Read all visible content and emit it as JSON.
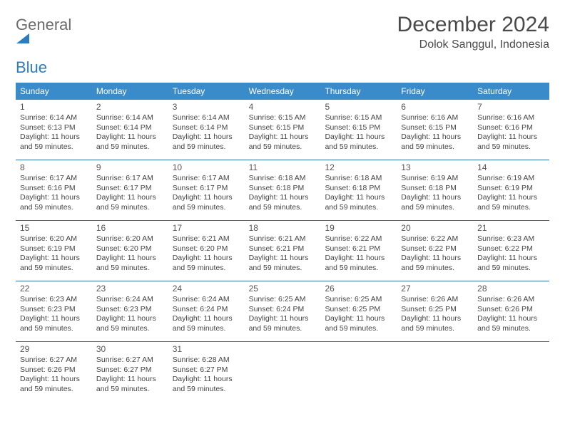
{
  "brand": {
    "text_general": "General",
    "text_blue": "Blue",
    "icon_color": "#2b7cc0"
  },
  "title": "December 2024",
  "location": "Dolok Sanggul, Indonesia",
  "colors": {
    "header_bg": "#3a8bc9",
    "header_text": "#ffffff",
    "row_border": "#2f6fa3",
    "body_text": "#444444",
    "daynum_text": "#555555",
    "title_text": "#4a4a4a",
    "logo_gray": "#6b6b6b",
    "page_bg": "#ffffff"
  },
  "day_headers": [
    "Sunday",
    "Monday",
    "Tuesday",
    "Wednesday",
    "Thursday",
    "Friday",
    "Saturday"
  ],
  "weeks": [
    [
      {
        "day": "1",
        "sunrise": "Sunrise: 6:14 AM",
        "sunset": "Sunset: 6:13 PM",
        "daylight": "Daylight: 11 hours and 59 minutes."
      },
      {
        "day": "2",
        "sunrise": "Sunrise: 6:14 AM",
        "sunset": "Sunset: 6:14 PM",
        "daylight": "Daylight: 11 hours and 59 minutes."
      },
      {
        "day": "3",
        "sunrise": "Sunrise: 6:14 AM",
        "sunset": "Sunset: 6:14 PM",
        "daylight": "Daylight: 11 hours and 59 minutes."
      },
      {
        "day": "4",
        "sunrise": "Sunrise: 6:15 AM",
        "sunset": "Sunset: 6:15 PM",
        "daylight": "Daylight: 11 hours and 59 minutes."
      },
      {
        "day": "5",
        "sunrise": "Sunrise: 6:15 AM",
        "sunset": "Sunset: 6:15 PM",
        "daylight": "Daylight: 11 hours and 59 minutes."
      },
      {
        "day": "6",
        "sunrise": "Sunrise: 6:16 AM",
        "sunset": "Sunset: 6:15 PM",
        "daylight": "Daylight: 11 hours and 59 minutes."
      },
      {
        "day": "7",
        "sunrise": "Sunrise: 6:16 AM",
        "sunset": "Sunset: 6:16 PM",
        "daylight": "Daylight: 11 hours and 59 minutes."
      }
    ],
    [
      {
        "day": "8",
        "sunrise": "Sunrise: 6:17 AM",
        "sunset": "Sunset: 6:16 PM",
        "daylight": "Daylight: 11 hours and 59 minutes."
      },
      {
        "day": "9",
        "sunrise": "Sunrise: 6:17 AM",
        "sunset": "Sunset: 6:17 PM",
        "daylight": "Daylight: 11 hours and 59 minutes."
      },
      {
        "day": "10",
        "sunrise": "Sunrise: 6:17 AM",
        "sunset": "Sunset: 6:17 PM",
        "daylight": "Daylight: 11 hours and 59 minutes."
      },
      {
        "day": "11",
        "sunrise": "Sunrise: 6:18 AM",
        "sunset": "Sunset: 6:18 PM",
        "daylight": "Daylight: 11 hours and 59 minutes."
      },
      {
        "day": "12",
        "sunrise": "Sunrise: 6:18 AM",
        "sunset": "Sunset: 6:18 PM",
        "daylight": "Daylight: 11 hours and 59 minutes."
      },
      {
        "day": "13",
        "sunrise": "Sunrise: 6:19 AM",
        "sunset": "Sunset: 6:18 PM",
        "daylight": "Daylight: 11 hours and 59 minutes."
      },
      {
        "day": "14",
        "sunrise": "Sunrise: 6:19 AM",
        "sunset": "Sunset: 6:19 PM",
        "daylight": "Daylight: 11 hours and 59 minutes."
      }
    ],
    [
      {
        "day": "15",
        "sunrise": "Sunrise: 6:20 AM",
        "sunset": "Sunset: 6:19 PM",
        "daylight": "Daylight: 11 hours and 59 minutes."
      },
      {
        "day": "16",
        "sunrise": "Sunrise: 6:20 AM",
        "sunset": "Sunset: 6:20 PM",
        "daylight": "Daylight: 11 hours and 59 minutes."
      },
      {
        "day": "17",
        "sunrise": "Sunrise: 6:21 AM",
        "sunset": "Sunset: 6:20 PM",
        "daylight": "Daylight: 11 hours and 59 minutes."
      },
      {
        "day": "18",
        "sunrise": "Sunrise: 6:21 AM",
        "sunset": "Sunset: 6:21 PM",
        "daylight": "Daylight: 11 hours and 59 minutes."
      },
      {
        "day": "19",
        "sunrise": "Sunrise: 6:22 AM",
        "sunset": "Sunset: 6:21 PM",
        "daylight": "Daylight: 11 hours and 59 minutes."
      },
      {
        "day": "20",
        "sunrise": "Sunrise: 6:22 AM",
        "sunset": "Sunset: 6:22 PM",
        "daylight": "Daylight: 11 hours and 59 minutes."
      },
      {
        "day": "21",
        "sunrise": "Sunrise: 6:23 AM",
        "sunset": "Sunset: 6:22 PM",
        "daylight": "Daylight: 11 hours and 59 minutes."
      }
    ],
    [
      {
        "day": "22",
        "sunrise": "Sunrise: 6:23 AM",
        "sunset": "Sunset: 6:23 PM",
        "daylight": "Daylight: 11 hours and 59 minutes."
      },
      {
        "day": "23",
        "sunrise": "Sunrise: 6:24 AM",
        "sunset": "Sunset: 6:23 PM",
        "daylight": "Daylight: 11 hours and 59 minutes."
      },
      {
        "day": "24",
        "sunrise": "Sunrise: 6:24 AM",
        "sunset": "Sunset: 6:24 PM",
        "daylight": "Daylight: 11 hours and 59 minutes."
      },
      {
        "day": "25",
        "sunrise": "Sunrise: 6:25 AM",
        "sunset": "Sunset: 6:24 PM",
        "daylight": "Daylight: 11 hours and 59 minutes."
      },
      {
        "day": "26",
        "sunrise": "Sunrise: 6:25 AM",
        "sunset": "Sunset: 6:25 PM",
        "daylight": "Daylight: 11 hours and 59 minutes."
      },
      {
        "day": "27",
        "sunrise": "Sunrise: 6:26 AM",
        "sunset": "Sunset: 6:25 PM",
        "daylight": "Daylight: 11 hours and 59 minutes."
      },
      {
        "day": "28",
        "sunrise": "Sunrise: 6:26 AM",
        "sunset": "Sunset: 6:26 PM",
        "daylight": "Daylight: 11 hours and 59 minutes."
      }
    ],
    [
      {
        "day": "29",
        "sunrise": "Sunrise: 6:27 AM",
        "sunset": "Sunset: 6:26 PM",
        "daylight": "Daylight: 11 hours and 59 minutes."
      },
      {
        "day": "30",
        "sunrise": "Sunrise: 6:27 AM",
        "sunset": "Sunset: 6:27 PM",
        "daylight": "Daylight: 11 hours and 59 minutes."
      },
      {
        "day": "31",
        "sunrise": "Sunrise: 6:28 AM",
        "sunset": "Sunset: 6:27 PM",
        "daylight": "Daylight: 11 hours and 59 minutes."
      },
      null,
      null,
      null,
      null
    ]
  ]
}
